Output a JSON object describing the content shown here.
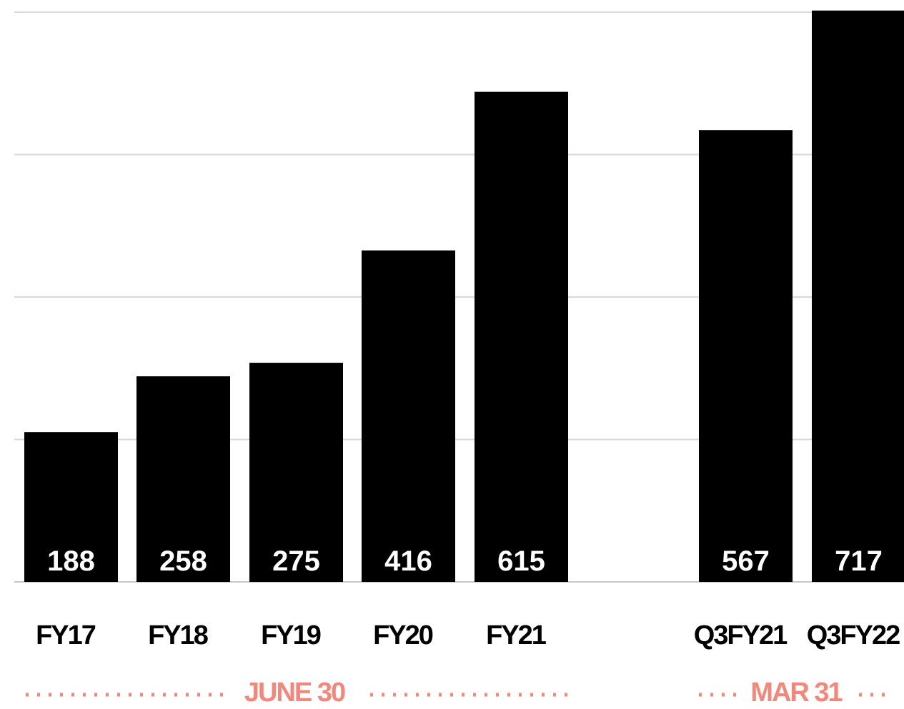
{
  "chart_data": {
    "type": "bar",
    "categories": [
      "FY17",
      "FY18",
      "FY19",
      "FY20",
      "FY21",
      "Q3FY21",
      "Q3FY22"
    ],
    "values": [
      188,
      258,
      275,
      416,
      615,
      567,
      717
    ],
    "data_labels": [
      "188",
      "258",
      "275",
      "416",
      "615",
      "567",
      "717"
    ],
    "groups": [
      {
        "label": "JUNE 30",
        "categories": [
          "FY17",
          "FY18",
          "FY19",
          "FY20",
          "FY21"
        ]
      },
      {
        "label": "MAR 31",
        "categories": [
          "Q3FY21",
          "Q3FY22"
        ]
      }
    ],
    "ylim": [
      0,
      715
    ],
    "gridlines": [
      0,
      178.75,
      357.5,
      536.25,
      715
    ],
    "grid": true,
    "legend": "none",
    "title": "",
    "xlabel": "",
    "ylabel": "",
    "colors": {
      "bar": "#000000",
      "value_label": "#ffffff",
      "grid": "#d9d9d9",
      "group_label": "#f4877a"
    }
  }
}
